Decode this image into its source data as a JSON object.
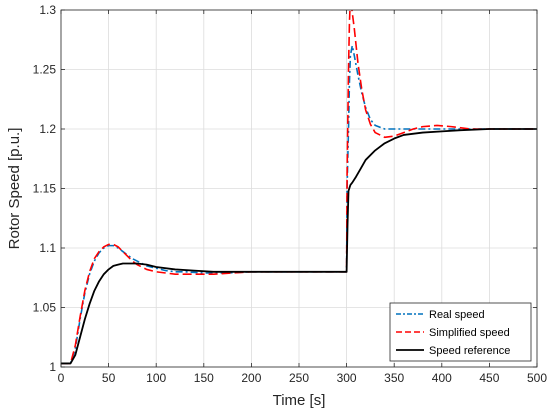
{
  "chart_data": {
    "type": "line",
    "xlabel": "Time [s]",
    "ylabel": "Rotor Speed [p.u.]",
    "xlim": [
      0,
      500
    ],
    "ylim": [
      1.0,
      1.3
    ],
    "grid": true,
    "x_ticks": [
      0,
      50,
      100,
      150,
      200,
      250,
      300,
      350,
      400,
      450,
      500
    ],
    "x_tick_labels": [
      "0",
      "50",
      "100",
      "150",
      "200",
      "250",
      "300",
      "350",
      "400",
      "450",
      "500"
    ],
    "y_ticks": [
      1.0,
      1.05,
      1.1,
      1.15,
      1.2,
      1.25,
      1.3
    ],
    "y_tick_labels": [
      "1",
      "1.05",
      "1.1",
      "1.15",
      "1.2",
      "1.25",
      "1.3"
    ],
    "legend_position": "bottom-right",
    "series": [
      {
        "name": "Real speed",
        "color": "#0072BD",
        "dash": "dash-dot",
        "points": [
          [
            0,
            1.003
          ],
          [
            10,
            1.003
          ],
          [
            15,
            1.015
          ],
          [
            20,
            1.04
          ],
          [
            25,
            1.062
          ],
          [
            30,
            1.078
          ],
          [
            35,
            1.089
          ],
          [
            40,
            1.096
          ],
          [
            45,
            1.1
          ],
          [
            50,
            1.102
          ],
          [
            55,
            1.102
          ],
          [
            60,
            1.1
          ],
          [
            65,
            1.097
          ],
          [
            70,
            1.094
          ],
          [
            75,
            1.091
          ],
          [
            80,
            1.089
          ],
          [
            85,
            1.087
          ],
          [
            90,
            1.085
          ],
          [
            100,
            1.083
          ],
          [
            110,
            1.081
          ],
          [
            120,
            1.08
          ],
          [
            130,
            1.08
          ],
          [
            150,
            1.079
          ],
          [
            175,
            1.079
          ],
          [
            200,
            1.08
          ],
          [
            250,
            1.08
          ],
          [
            300,
            1.08
          ],
          [
            300.5,
            1.15
          ],
          [
            302,
            1.2
          ],
          [
            303,
            1.24
          ],
          [
            304,
            1.262
          ],
          [
            306,
            1.27
          ],
          [
            308,
            1.262
          ],
          [
            312,
            1.245
          ],
          [
            316,
            1.23
          ],
          [
            320,
            1.218
          ],
          [
            325,
            1.208
          ],
          [
            330,
            1.203
          ],
          [
            340,
            1.2
          ],
          [
            350,
            1.2
          ],
          [
            380,
            1.2
          ],
          [
            400,
            1.2
          ],
          [
            450,
            1.2
          ],
          [
            500,
            1.2
          ]
        ]
      },
      {
        "name": "Simplified speed",
        "color": "#FF0000",
        "dash": "dashed",
        "points": [
          [
            0,
            1.003
          ],
          [
            10,
            1.003
          ],
          [
            15,
            1.018
          ],
          [
            20,
            1.042
          ],
          [
            25,
            1.064
          ],
          [
            30,
            1.08
          ],
          [
            35,
            1.091
          ],
          [
            40,
            1.097
          ],
          [
            45,
            1.101
          ],
          [
            50,
            1.103
          ],
          [
            55,
            1.103
          ],
          [
            60,
            1.101
          ],
          [
            65,
            1.097
          ],
          [
            70,
            1.093
          ],
          [
            75,
            1.089
          ],
          [
            80,
            1.086
          ],
          [
            90,
            1.082
          ],
          [
            100,
            1.08
          ],
          [
            120,
            1.078
          ],
          [
            140,
            1.078
          ],
          [
            160,
            1.078
          ],
          [
            200,
            1.08
          ],
          [
            250,
            1.08
          ],
          [
            300,
            1.08
          ],
          [
            300.5,
            1.16
          ],
          [
            302,
            1.25
          ],
          [
            303,
            1.29
          ],
          [
            304,
            1.31
          ],
          [
            308,
            1.285
          ],
          [
            312,
            1.255
          ],
          [
            316,
            1.233
          ],
          [
            320,
            1.216
          ],
          [
            325,
            1.204
          ],
          [
            330,
            1.197
          ],
          [
            340,
            1.193
          ],
          [
            350,
            1.194
          ],
          [
            360,
            1.197
          ],
          [
            370,
            1.2
          ],
          [
            380,
            1.202
          ],
          [
            395,
            1.203
          ],
          [
            410,
            1.202
          ],
          [
            430,
            1.2
          ],
          [
            450,
            1.2
          ],
          [
            500,
            1.2
          ]
        ]
      },
      {
        "name": "Speed reference",
        "color": "#000000",
        "dash": "solid",
        "points": [
          [
            0,
            1.003
          ],
          [
            10,
            1.003
          ],
          [
            15,
            1.01
          ],
          [
            20,
            1.025
          ],
          [
            25,
            1.04
          ],
          [
            30,
            1.053
          ],
          [
            35,
            1.064
          ],
          [
            40,
            1.072
          ],
          [
            45,
            1.078
          ],
          [
            50,
            1.082
          ],
          [
            55,
            1.085
          ],
          [
            60,
            1.086
          ],
          [
            65,
            1.087
          ],
          [
            70,
            1.087
          ],
          [
            80,
            1.087
          ],
          [
            90,
            1.086
          ],
          [
            100,
            1.084
          ],
          [
            120,
            1.082
          ],
          [
            140,
            1.081
          ],
          [
            160,
            1.08
          ],
          [
            200,
            1.08
          ],
          [
            250,
            1.08
          ],
          [
            300,
            1.08
          ],
          [
            301,
            1.12
          ],
          [
            302,
            1.148
          ],
          [
            304,
            1.153
          ],
          [
            306,
            1.155
          ],
          [
            310,
            1.16
          ],
          [
            315,
            1.167
          ],
          [
            320,
            1.174
          ],
          [
            330,
            1.182
          ],
          [
            340,
            1.188
          ],
          [
            350,
            1.192
          ],
          [
            360,
            1.195
          ],
          [
            380,
            1.197
          ],
          [
            400,
            1.198
          ],
          [
            420,
            1.199
          ],
          [
            450,
            1.2
          ],
          [
            500,
            1.2
          ]
        ]
      }
    ]
  }
}
